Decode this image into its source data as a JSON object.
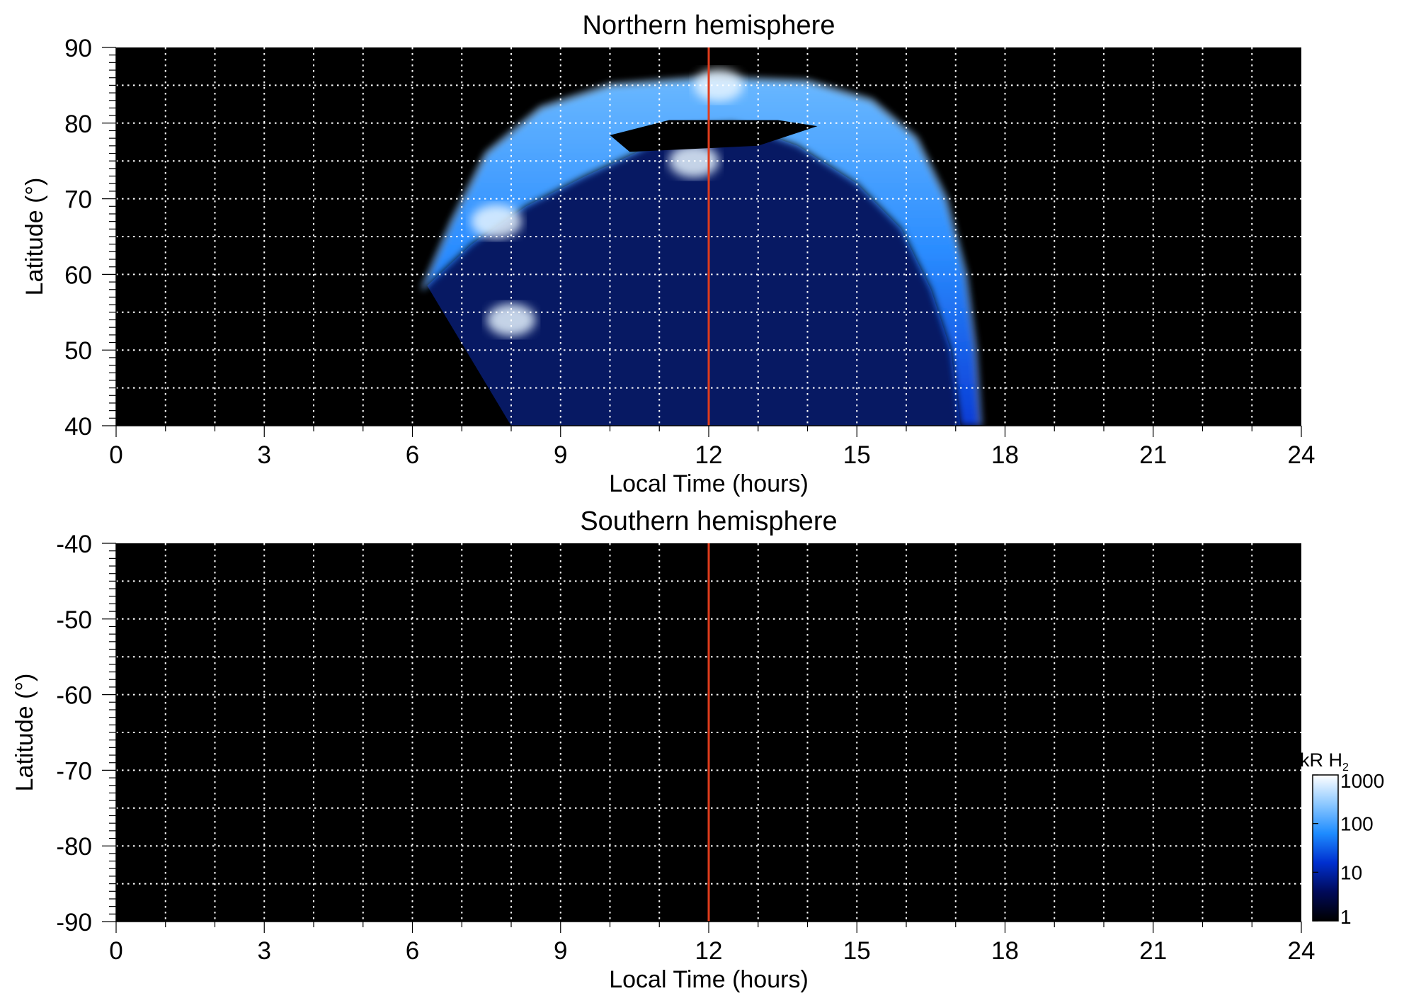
{
  "chart_data": [
    {
      "type": "heatmap",
      "title": "Northern hemisphere",
      "xlabel": "Local Time (hours)",
      "ylabel": "Latitude (°)",
      "xlim": [
        0,
        24
      ],
      "ylim": [
        40,
        90
      ],
      "xticks": [
        "0",
        "3",
        "6",
        "9",
        "12",
        "15",
        "18",
        "21",
        "24"
      ],
      "yticks": [
        "40",
        "50",
        "60",
        "70",
        "80",
        "90"
      ],
      "grid": true,
      "reference_line": {
        "x": 12,
        "color": "#e03c1c"
      },
      "auroral_oval": {
        "outer_edge": [
          [
            6.2,
            58
          ],
          [
            6.8,
            67
          ],
          [
            7.5,
            76
          ],
          [
            8.6,
            82
          ],
          [
            10,
            85
          ],
          [
            12,
            86
          ],
          [
            14,
            85.5
          ],
          [
            15.3,
            83
          ],
          [
            16.2,
            78
          ],
          [
            16.8,
            70
          ],
          [
            17.2,
            60
          ],
          [
            17.4,
            50
          ],
          [
            17.5,
            40
          ]
        ],
        "inner_edge": [
          [
            6.3,
            58.5
          ],
          [
            7.2,
            64
          ],
          [
            8.3,
            69
          ],
          [
            9.5,
            73
          ],
          [
            10.5,
            76
          ],
          [
            11.5,
            79.5
          ],
          [
            12.5,
            80
          ],
          [
            13.8,
            77
          ],
          [
            15,
            72
          ],
          [
            15.9,
            66
          ],
          [
            16.5,
            58
          ],
          [
            16.9,
            50
          ],
          [
            17.1,
            40
          ]
        ],
        "peak_kR": 1000
      },
      "hotspots": [
        {
          "x": 7.7,
          "y": 67,
          "kR": 1000
        },
        {
          "x": 11.7,
          "y": 75,
          "kR": 800
        },
        {
          "x": 8.0,
          "y": 54,
          "kR": 600
        },
        {
          "x": 12.2,
          "y": 85,
          "kR": 700
        }
      ],
      "diffuse_region": {
        "x_range": [
          8,
          17
        ],
        "y_range": [
          40,
          76
        ],
        "kR": 10
      }
    },
    {
      "type": "heatmap",
      "title": "Southern hemisphere",
      "xlabel": "Local Time (hours)",
      "ylabel": "Latitude (°)",
      "xlim": [
        0,
        24
      ],
      "ylim": [
        -90,
        -40
      ],
      "xticks": [
        "0",
        "3",
        "6",
        "9",
        "12",
        "15",
        "18",
        "21",
        "24"
      ],
      "yticks": [
        "-40",
        "-50",
        "-60",
        "-70",
        "-80",
        "-90"
      ],
      "grid": true,
      "reference_line": {
        "x": 12,
        "color": "#e03c1c"
      },
      "empty": true
    }
  ],
  "colorbar": {
    "label": "kR H",
    "label_subscript": "2",
    "scale": "log",
    "range": [
      1,
      1000
    ],
    "ticks": [
      "1000",
      "100",
      "10",
      "1"
    ],
    "colors": [
      "#000000",
      "#000a5a",
      "#0030d0",
      "#1e8cff",
      "#8cc8ff",
      "#ffffff"
    ]
  }
}
